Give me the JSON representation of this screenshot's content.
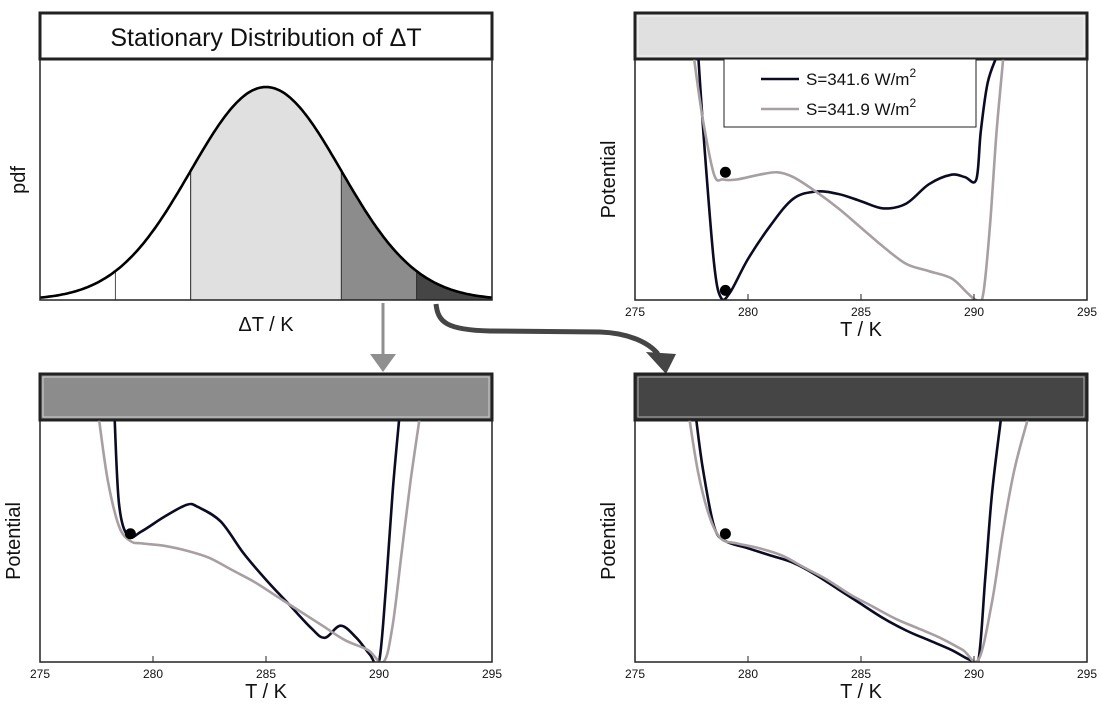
{
  "colors": {
    "series_dark": "#0b0b24",
    "series_light": "#a89fa2",
    "band_light": "#e0e0e0",
    "band_mid": "#8c8c8c",
    "band_dark": "#454545",
    "arrow_gray": "#8f8f8f",
    "arrow_dark": "#454545"
  },
  "chart_data": [
    {
      "id": "pdf",
      "type": "area",
      "title": "Stationary Distribution of ΔT",
      "xlabel": "ΔT / K",
      "ylabel": "pdf",
      "distribution": "gaussian",
      "mean": 0,
      "sd": 1,
      "xlim": [
        -3,
        3
      ],
      "shaded_bands": [
        {
          "from": -1,
          "to": 1,
          "color": "#e0e0e0"
        },
        {
          "from": 1,
          "to": 2,
          "color": "#8c8c8c"
        },
        {
          "from": 2,
          "to": 3,
          "color": "#454545"
        }
      ],
      "marker_lines": [
        -2,
        -1
      ]
    },
    {
      "id": "light",
      "type": "line",
      "header_color": "#e0e0e0",
      "xlabel": "T / K",
      "ylabel": "Potential",
      "xlim": [
        275,
        295
      ],
      "ylim": [
        0,
        1
      ],
      "xticks": [
        275,
        280,
        285,
        290,
        295
      ],
      "legend": {
        "position": "top-center",
        "entries": [
          "S=341.6 W/m",
          "S=341.9 W/m"
        ],
        "superscript": "2"
      },
      "series": [
        {
          "name": "S=341.6 W/m²",
          "color": "#0b0b24",
          "x": [
            277.8,
            278.1,
            278.5,
            278.8,
            279.2,
            280,
            281,
            282,
            283,
            284,
            285,
            286,
            287,
            288,
            289,
            289.6,
            290.1,
            290.3,
            290.6,
            291
          ],
          "y": [
            1.01,
            0.6,
            0.15,
            0.01,
            0.03,
            0.17,
            0.31,
            0.42,
            0.45,
            0.44,
            0.41,
            0.38,
            0.4,
            0.48,
            0.52,
            0.51,
            0.5,
            0.7,
            0.9,
            1.01
          ]
        },
        {
          "name": "S=341.9 W/m²",
          "color": "#a89fa2",
          "x": [
            277.6,
            278,
            278.5,
            278.9,
            279.5,
            280.5,
            281.3,
            282,
            283,
            284,
            285,
            286,
            287,
            288,
            289,
            289.7,
            290.1,
            290.4,
            290.7,
            291,
            291.3
          ],
          "y": [
            1.01,
            0.75,
            0.52,
            0.5,
            0.5,
            0.52,
            0.53,
            0.51,
            0.45,
            0.38,
            0.3,
            0.22,
            0.15,
            0.12,
            0.09,
            0.03,
            0.0,
            0.02,
            0.3,
            0.7,
            1.01
          ]
        }
      ],
      "markers": [
        {
          "x": 279,
          "y": 0.53
        },
        {
          "x": 279,
          "y": 0.04
        }
      ]
    },
    {
      "id": "mid",
      "type": "line",
      "header_color": "#8c8c8c",
      "xlabel": "T / K",
      "ylabel": "Potential",
      "xlim": [
        275,
        295
      ],
      "ylim": [
        0,
        1
      ],
      "xticks": [
        275,
        280,
        285,
        290,
        295
      ],
      "series": [
        {
          "name": "S=341.6 W/m²",
          "color": "#0b0b24",
          "x": [
            278.3,
            278.5,
            278.9,
            279.5,
            280.5,
            281.5,
            282,
            283,
            284,
            285,
            286,
            287,
            287.6,
            288.3,
            289,
            289.6,
            290,
            290.3,
            290.6,
            290.9
          ],
          "y": [
            1.01,
            0.65,
            0.52,
            0.54,
            0.6,
            0.65,
            0.64,
            0.58,
            0.45,
            0.34,
            0.24,
            0.14,
            0.1,
            0.15,
            0.1,
            0.03,
            0.0,
            0.3,
            0.7,
            1.01
          ]
        },
        {
          "name": "S=341.9 W/m²",
          "color": "#a89fa2",
          "x": [
            277.6,
            278,
            278.5,
            279,
            279.5,
            280.5,
            281.5,
            282.5,
            283.5,
            284.5,
            285.5,
            286.5,
            287.5,
            288.5,
            289.5,
            290.2,
            290.6,
            291,
            291.4,
            291.8
          ],
          "y": [
            1.01,
            0.75,
            0.56,
            0.5,
            0.49,
            0.48,
            0.46,
            0.43,
            0.38,
            0.33,
            0.27,
            0.21,
            0.15,
            0.09,
            0.05,
            0.0,
            0.15,
            0.45,
            0.75,
            1.01
          ]
        }
      ],
      "markers": [
        {
          "x": 279,
          "y": 0.53
        }
      ]
    },
    {
      "id": "dark",
      "type": "line",
      "header_color": "#454545",
      "xlabel": "T / K",
      "ylabel": "Potential",
      "xlim": [
        275,
        295
      ],
      "ylim": [
        0,
        1
      ],
      "xticks": [
        275,
        280,
        285,
        290,
        295
      ],
      "series": [
        {
          "name": "S=341.6 W/m²",
          "color": "#0b0b24",
          "x": [
            277.7,
            278,
            278.5,
            279,
            280,
            281,
            282,
            283,
            284,
            285,
            286,
            287,
            288,
            289,
            289.8,
            290.2,
            290.5,
            290.8,
            291.2
          ],
          "y": [
            1.01,
            0.8,
            0.56,
            0.5,
            0.47,
            0.44,
            0.41,
            0.36,
            0.3,
            0.24,
            0.18,
            0.13,
            0.09,
            0.05,
            0.01,
            0.01,
            0.35,
            0.7,
            1.01
          ]
        },
        {
          "name": "S=341.9 W/m²",
          "color": "#a89fa2",
          "x": [
            277.4,
            277.8,
            278.3,
            278.8,
            279.5,
            280.5,
            281.5,
            282.5,
            283.5,
            284.5,
            285.5,
            286.5,
            287.5,
            288.5,
            289.5,
            290.2,
            290.8,
            291.3,
            291.8,
            292.4
          ],
          "y": [
            1.01,
            0.78,
            0.6,
            0.51,
            0.49,
            0.47,
            0.44,
            0.39,
            0.34,
            0.28,
            0.23,
            0.18,
            0.14,
            0.1,
            0.05,
            0.01,
            0.25,
            0.55,
            0.8,
            1.01
          ]
        }
      ],
      "markers": [
        {
          "x": 279,
          "y": 0.53
        }
      ]
    }
  ]
}
